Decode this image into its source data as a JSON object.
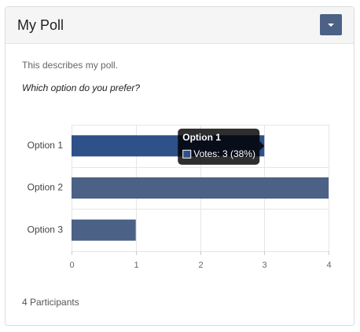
{
  "header": {
    "title": "My Poll"
  },
  "description": "This describes my poll.",
  "question": "Which option do you prefer?",
  "chart_data": {
    "type": "bar",
    "orientation": "horizontal",
    "categories": [
      "Option 1",
      "Option 2",
      "Option 3"
    ],
    "values": [
      3,
      4,
      1
    ],
    "colors": [
      "#2f5189",
      "#4b6186",
      "#4b6186"
    ],
    "xlim": [
      0,
      4
    ],
    "xticks": [
      0,
      1,
      2,
      3,
      4
    ],
    "grid": true,
    "tooltip": {
      "title": "Option 1",
      "label": "Votes: 3 (38%)"
    }
  },
  "footer": "4 Participants"
}
